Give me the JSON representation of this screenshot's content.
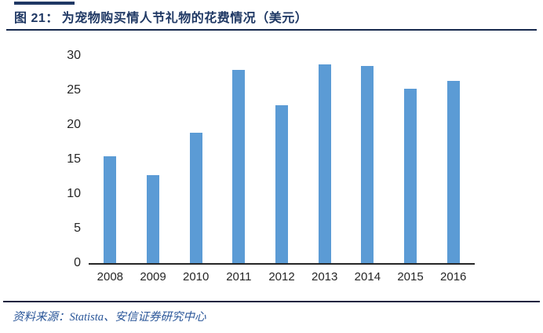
{
  "header": {
    "figure_label": "图 21：",
    "title": "为宠物购买情人节礼物的花费情况（美元）"
  },
  "footer": {
    "source_prefix": "资料来源：",
    "source_text": "Statista、安信证券研究中心"
  },
  "colors": {
    "title_navy": "#1f3864",
    "bar_blue": "#5b9bd5",
    "axis_text": "#262626",
    "source_blue": "#2a5699"
  },
  "chart_data": {
    "type": "bar",
    "title": "为宠物购买情人节礼物的花费情况（美元）",
    "categories": [
      "2008",
      "2009",
      "2010",
      "2011",
      "2012",
      "2013",
      "2014",
      "2015",
      "2016"
    ],
    "values": [
      15.4,
      12.7,
      18.9,
      28.0,
      22.8,
      28.8,
      28.5,
      25.2,
      26.4
    ],
    "xlabel": "",
    "ylabel": "",
    "ylim": [
      0,
      30
    ],
    "yticks": [
      0,
      5,
      10,
      15,
      20,
      25,
      30
    ],
    "grid": false,
    "legend": false,
    "bar_color": "#5b9bd5"
  }
}
